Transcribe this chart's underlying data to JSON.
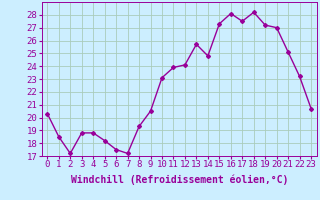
{
  "x": [
    0,
    1,
    2,
    3,
    4,
    5,
    6,
    7,
    8,
    9,
    10,
    11,
    12,
    13,
    14,
    15,
    16,
    17,
    18,
    19,
    20,
    21,
    22,
    23
  ],
  "y": [
    20.3,
    18.5,
    17.2,
    18.8,
    18.8,
    18.2,
    17.5,
    17.2,
    19.3,
    20.5,
    23.1,
    23.9,
    24.1,
    25.7,
    24.8,
    27.3,
    28.1,
    27.5,
    28.2,
    27.2,
    27.0,
    25.1,
    23.2,
    20.7
  ],
  "line_color": "#990099",
  "marker": "D",
  "marker_size": 2,
  "bg_color": "#cceeff",
  "grid_color": "#aaccbb",
  "xlabel": "Windchill (Refroidissement éolien,°C)",
  "xlabel_fontsize": 7,
  "ylim": [
    17,
    29
  ],
  "yticks": [
    17,
    18,
    19,
    20,
    21,
    22,
    23,
    24,
    25,
    26,
    27,
    28
  ],
  "xticks": [
    0,
    1,
    2,
    3,
    4,
    5,
    6,
    7,
    8,
    9,
    10,
    11,
    12,
    13,
    14,
    15,
    16,
    17,
    18,
    19,
    20,
    21,
    22,
    23
  ],
  "tick_fontsize": 6.5,
  "line_width": 1.0
}
